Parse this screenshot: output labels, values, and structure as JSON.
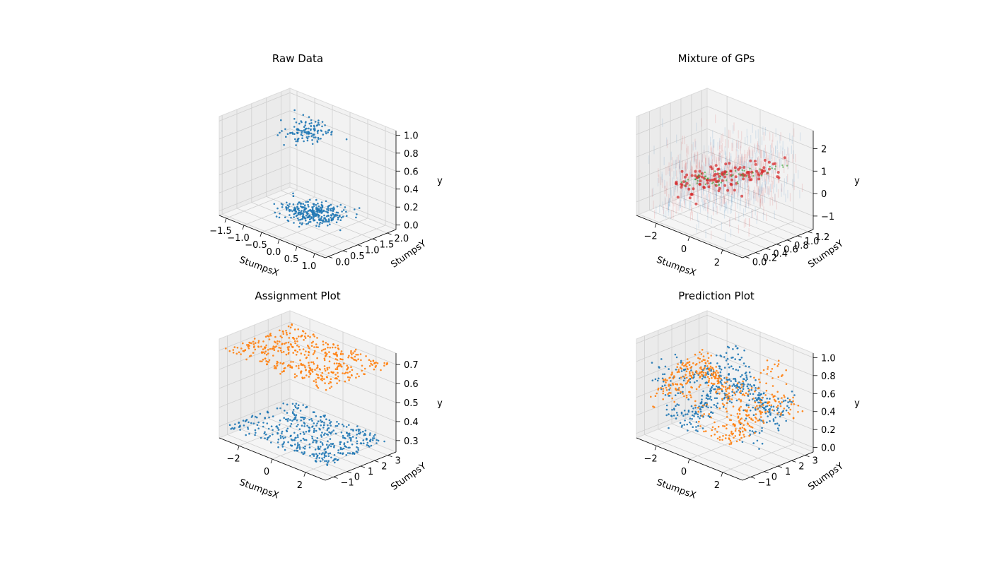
{
  "chart_data": [
    {
      "type": "scatter",
      "title": "Raw Data",
      "xlabel": "StumpsX",
      "ylabel": "StumpsY",
      "zlabel": "y",
      "xlim": [
        -1.7,
        1.3
      ],
      "ylim": [
        -0.1,
        2.3
      ],
      "zlim": [
        -0.05,
        1.05
      ],
      "xticks": [
        "−1.5",
        "−1.0",
        "−0.5",
        "0.0",
        "0.5",
        "1.0"
      ],
      "xtick_values": [
        -1.5,
        -1.0,
        -0.5,
        0.0,
        0.5,
        1.0
      ],
      "yticks": [
        "0.0",
        "0.5",
        "1.0",
        "1.5",
        "2.0"
      ],
      "ytick_values": [
        0.0,
        0.5,
        1.0,
        1.5,
        2.0
      ],
      "zticks": [
        "0.0",
        "0.2",
        "0.4",
        "0.6",
        "0.8",
        "1.0"
      ],
      "ztick_values": [
        0.0,
        0.2,
        0.4,
        0.6,
        0.8,
        1.0
      ],
      "grid": true,
      "series": [
        {
          "color": "#1f77b4",
          "clusters": [
            {
              "x": -0.2,
              "y": 1.3,
              "z": 0.02,
              "sx": 0.35,
              "sy": 0.35,
              "sz": 0.01,
              "n": 300
            },
            {
              "x": -0.6,
              "y": 1.6,
              "z": 0.78,
              "sx": 0.25,
              "sy": 0.3,
              "sz": 0.08,
              "n": 120
            }
          ]
        }
      ]
    },
    {
      "type": "scatter",
      "title": "Mixture of GPs",
      "xlabel": "StumpsX",
      "ylabel": "StumpsY",
      "zlabel": "y",
      "xlim": [
        -3.2,
        3.2
      ],
      "ylim": [
        -0.05,
        1.3
      ],
      "zlim": [
        -1.6,
        2.8
      ],
      "xticks": [
        "−2",
        "0",
        "2"
      ],
      "xtick_values": [
        -2,
        0,
        2
      ],
      "yticks": [
        "0.0",
        "0.2",
        "0.4",
        "0.6",
        "0.8",
        "1.0",
        "1.2"
      ],
      "ytick_values": [
        0.0,
        0.2,
        0.4,
        0.6,
        0.8,
        1.0,
        1.2
      ],
      "zticks": [
        "−1",
        "0",
        "1",
        "2"
      ],
      "ztick_values": [
        -1,
        0,
        1,
        2
      ],
      "grid": true,
      "series": [
        {
          "color": "#d62728",
          "style": "posterior-samples"
        },
        {
          "color": "#1f77b4",
          "style": "posterior-samples"
        },
        {
          "color": "#2ca02c",
          "style": "mean"
        }
      ]
    },
    {
      "type": "scatter",
      "title": "Assignment Plot",
      "xlabel": "StumpsX",
      "ylabel": "StumpsY",
      "zlabel": "y",
      "xlim": [
        -3.2,
        3.2
      ],
      "ylim": [
        -1.6,
        3.6
      ],
      "zlim": [
        0.24,
        0.76
      ],
      "xticks": [
        "−2",
        "0",
        "2"
      ],
      "xtick_values": [
        -2,
        0,
        2
      ],
      "yticks": [
        "−1",
        "0",
        "1",
        "2",
        "3"
      ],
      "ytick_values": [
        -1,
        0,
        1,
        2,
        3
      ],
      "zticks": [
        "0.3",
        "0.4",
        "0.5",
        "0.6",
        "0.7"
      ],
      "ztick_values": [
        0.3,
        0.4,
        0.5,
        0.6,
        0.7
      ],
      "grid": true,
      "series": [
        {
          "color": "#ff7f0e",
          "z": 0.7,
          "n": 420
        },
        {
          "color": "#1f77b4",
          "z": 0.3,
          "n": 420
        }
      ]
    },
    {
      "type": "scatter",
      "title": "Prediction Plot",
      "xlabel": "StumpsX",
      "ylabel": "StumpsY",
      "zlabel": "y",
      "xlim": [
        -3.2,
        3.2
      ],
      "ylim": [
        -1.6,
        3.6
      ],
      "zlim": [
        -0.05,
        1.05
      ],
      "xticks": [
        "−2",
        "0",
        "2"
      ],
      "xtick_values": [
        -2,
        0,
        2
      ],
      "yticks": [
        "−1",
        "0",
        "1",
        "2",
        "3"
      ],
      "ytick_values": [
        -1,
        0,
        1,
        2,
        3
      ],
      "zticks": [
        "0.0",
        "0.2",
        "0.4",
        "0.6",
        "0.8",
        "1.0"
      ],
      "ztick_values": [
        0.0,
        0.2,
        0.4,
        0.6,
        0.8,
        1.0
      ],
      "grid": true,
      "series": [
        {
          "color": "#1f77b4",
          "n": 450
        },
        {
          "color": "#ff7f0e",
          "n": 450
        }
      ]
    }
  ]
}
